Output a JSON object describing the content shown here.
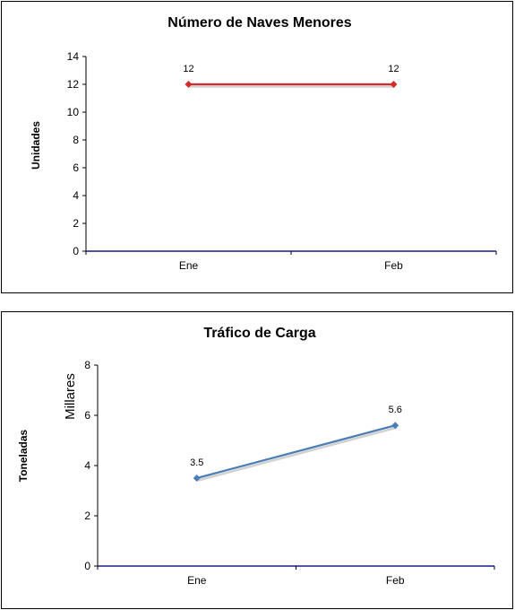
{
  "chart_data": [
    {
      "type": "line",
      "title": "Número de Naves Menores",
      "ylabel": "Unidades",
      "categories": [
        "Ene",
        "Feb"
      ],
      "series": [
        {
          "values": [
            12,
            12
          ],
          "labels": [
            "12",
            "12"
          ],
          "color": "#d42a2a"
        }
      ],
      "ylim": [
        0,
        14
      ],
      "yticks": [
        "0",
        "2",
        "4",
        "6",
        "8",
        "10",
        "12",
        "14"
      ],
      "grid": false,
      "legend": "none"
    },
    {
      "type": "line",
      "title": "Tráfico de Carga",
      "ylabel": "Toneladas",
      "units_label": "Millares",
      "categories": [
        "Ene",
        "Feb"
      ],
      "series": [
        {
          "values": [
            3.5,
            5.6
          ],
          "labels": [
            "3.5",
            "5.6"
          ],
          "color": "#4a7eb5"
        }
      ],
      "ylim": [
        0,
        8
      ],
      "yticks": [
        "0",
        "2",
        "4",
        "6",
        "8"
      ],
      "grid": false,
      "legend": "none"
    }
  ]
}
